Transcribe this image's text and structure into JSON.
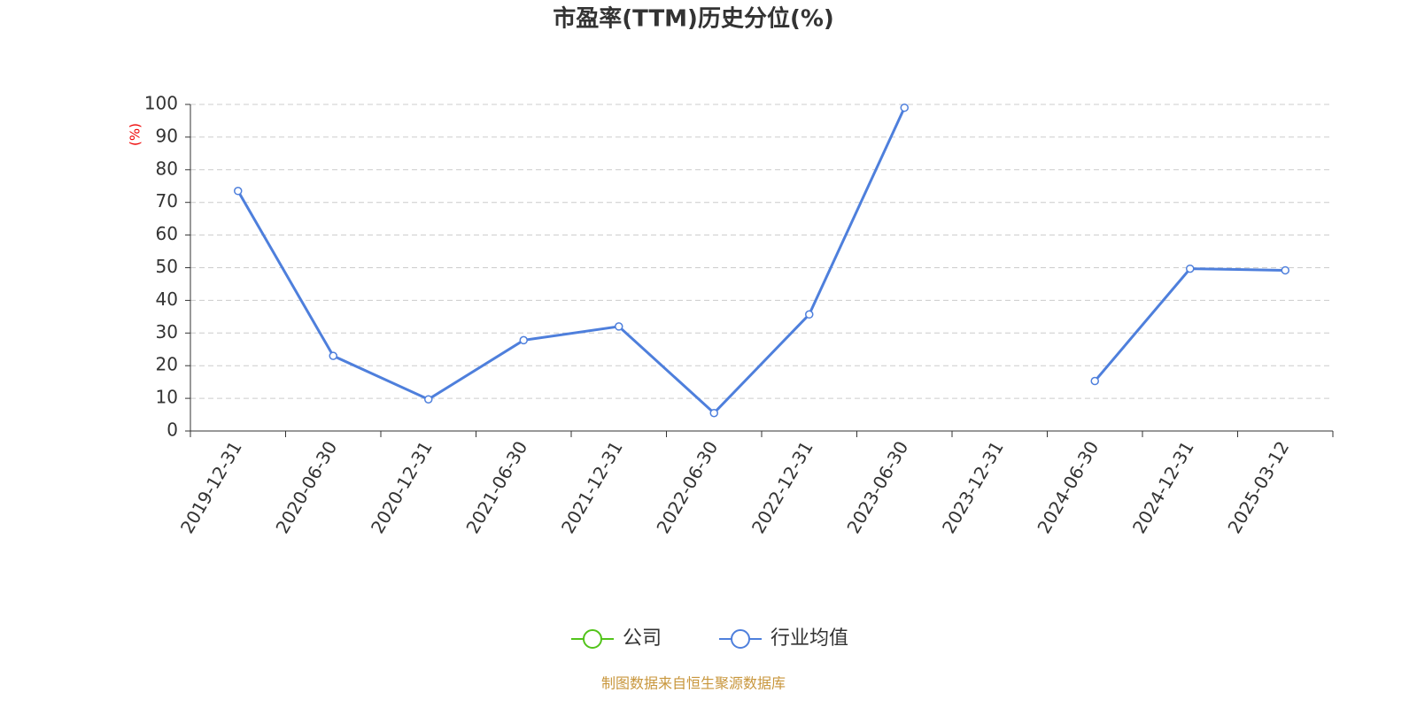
{
  "chart_data": {
    "type": "line",
    "title": "市盈率(TTM)历史分位(%)",
    "y_label": "(%)",
    "source": "制图数据来自恒生聚源数据库",
    "categories": [
      "2019-12-31",
      "2020-06-30",
      "2020-12-31",
      "2021-06-30",
      "2021-12-31",
      "2022-06-30",
      "2022-12-31",
      "2023-06-30",
      "2023-12-31",
      "2024-06-30",
      "2024-12-31",
      "2025-03-12"
    ],
    "series": [
      {
        "name": "公司",
        "color": "#52c41a",
        "values": [
          null,
          null,
          null,
          null,
          null,
          null,
          null,
          null,
          null,
          null,
          null,
          null
        ]
      },
      {
        "name": "行业均值",
        "color": "#4e7fdc",
        "values": [
          73.5,
          23,
          9.7,
          27.8,
          32,
          5.5,
          35.7,
          99,
          null,
          15.3,
          49.7,
          49.2
        ]
      }
    ],
    "ylim": [
      0,
      100
    ],
    "yticks": [
      0,
      10,
      20,
      30,
      40,
      50,
      60,
      70,
      80,
      90,
      100
    ],
    "grid": true
  }
}
